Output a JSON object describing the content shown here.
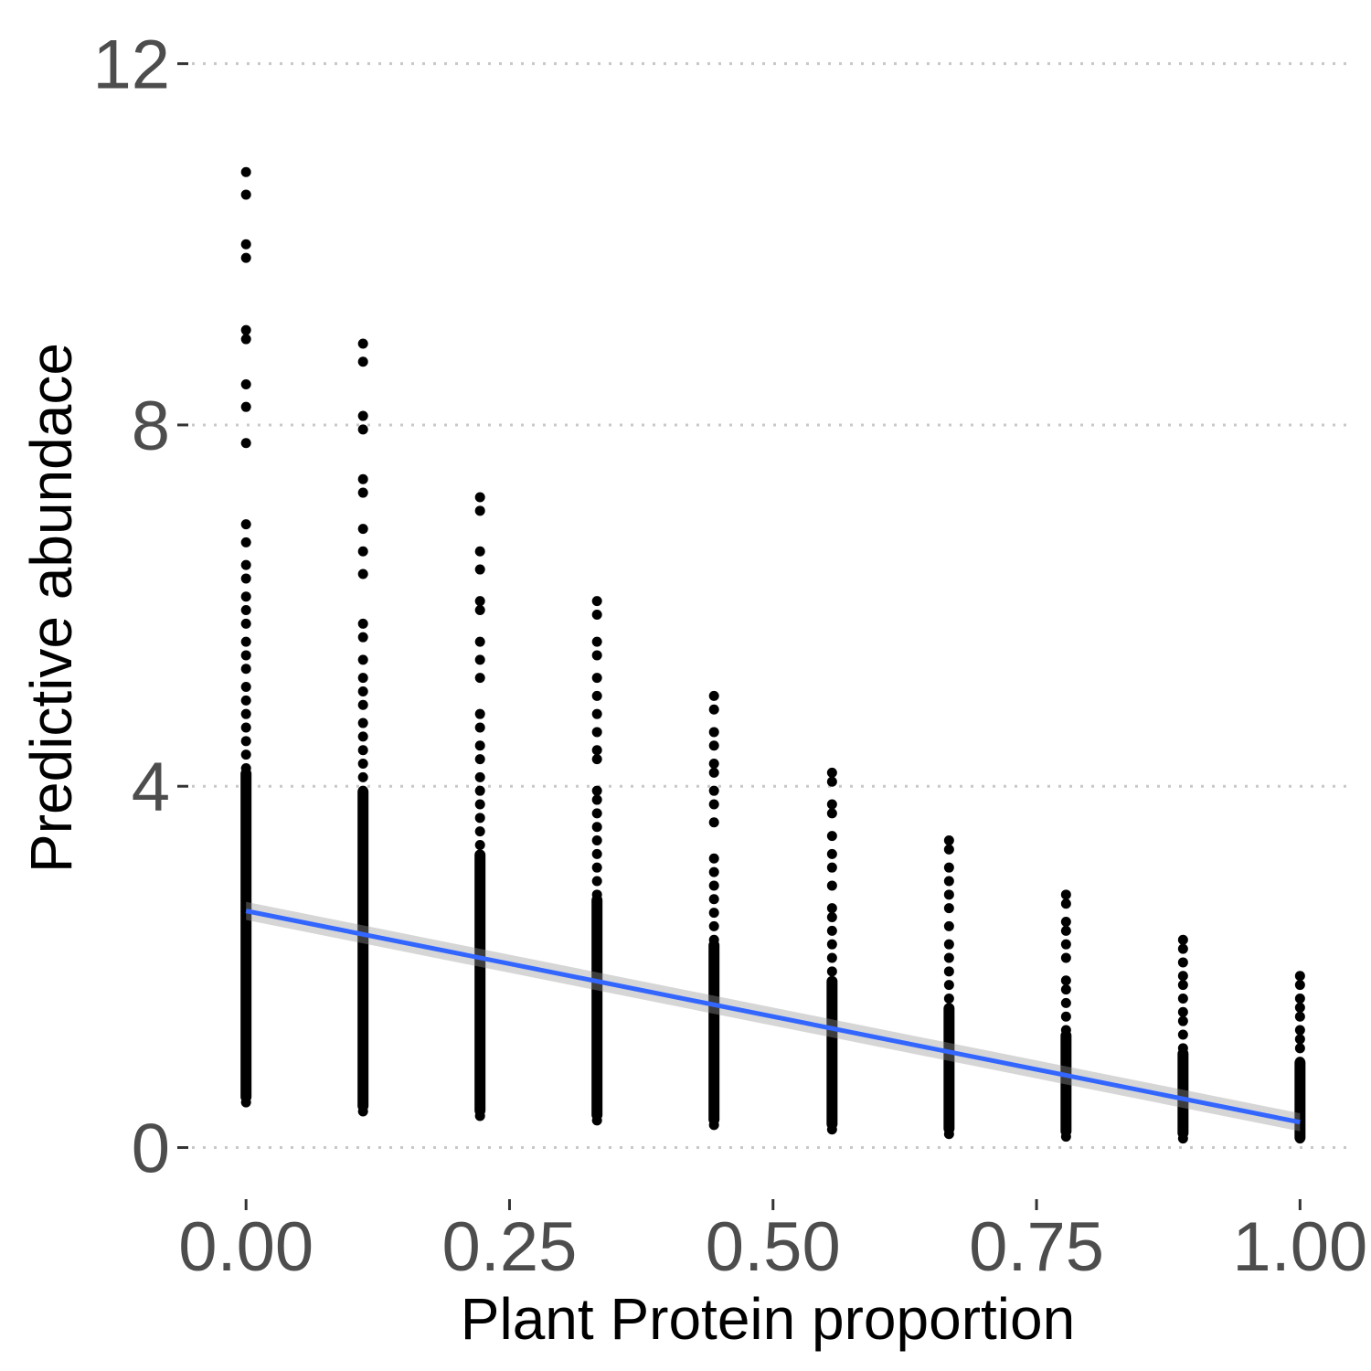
{
  "chart_data": {
    "type": "scatter",
    "title": "",
    "xlabel": "Plant Protein proportion",
    "ylabel": "Predictive abundace",
    "xlim": [
      -0.06,
      1.05
    ],
    "ylim": [
      -0.45,
      12.3
    ],
    "x_ticks": [
      0.0,
      0.25,
      0.5,
      0.75,
      1.0
    ],
    "x_tick_labels": [
      "0.00",
      "0.25",
      "0.50",
      "0.75",
      "1.00"
    ],
    "y_ticks": [
      0,
      4,
      8,
      12
    ],
    "y_tick_labels": [
      "0",
      "4",
      "8",
      "12"
    ],
    "grid": "horizontal dotted major lines",
    "legend": "none",
    "point_color": "#000000",
    "fit_line_color": "#3366FF",
    "confidence_band_color": "#999999",
    "groups": [
      {
        "x": 0.0,
        "points": [
          10.8,
          10.55,
          10.0,
          9.85,
          9.05,
          8.95,
          8.45,
          8.2,
          7.8,
          6.9,
          6.7,
          6.45,
          6.3,
          6.1,
          5.95,
          5.8,
          5.6,
          5.45,
          5.3,
          5.1,
          4.95,
          4.8,
          4.65,
          4.5,
          4.35,
          4.2,
          4.05,
          3.9,
          3.75,
          3.6,
          3.45,
          3.3,
          3.15,
          3.0,
          2.85,
          2.7,
          2.55,
          2.4,
          2.25,
          2.1,
          1.95,
          1.8,
          1.65,
          1.5,
          1.35,
          1.2,
          1.05,
          0.9,
          0.75,
          0.6,
          0.5
        ],
        "dense_range": [
          0.5,
          4.2
        ]
      },
      {
        "x": 0.111,
        "points": [
          8.9,
          8.7,
          8.1,
          7.95,
          7.4,
          7.25,
          6.85,
          6.6,
          6.35,
          5.8,
          5.65,
          5.4,
          5.2,
          5.05,
          4.9,
          4.7,
          4.55,
          4.4,
          4.25,
          4.1,
          3.95,
          3.8,
          3.65,
          3.5,
          3.35,
          3.2,
          3.05,
          2.9,
          2.75,
          2.6,
          2.45,
          2.3,
          2.15,
          2.0,
          1.85,
          1.7,
          1.55,
          1.4,
          1.25,
          1.1,
          0.95,
          0.8,
          0.65,
          0.5,
          0.4
        ],
        "dense_range": [
          0.4,
          4.0
        ]
      },
      {
        "x": 0.222,
        "points": [
          7.2,
          7.05,
          6.6,
          6.4,
          6.05,
          5.95,
          5.6,
          5.4,
          5.2,
          4.8,
          4.65,
          4.45,
          4.3,
          4.1,
          3.95,
          3.8,
          3.65,
          3.5,
          3.35,
          3.2,
          3.05,
          2.9,
          2.75,
          2.6,
          2.45,
          2.3,
          2.15,
          2.0,
          1.85,
          1.7,
          1.55,
          1.4,
          1.25,
          1.1,
          0.95,
          0.8,
          0.65,
          0.5,
          0.35
        ],
        "dense_range": [
          0.35,
          3.3
        ]
      },
      {
        "x": 0.333,
        "points": [
          6.05,
          5.9,
          5.6,
          5.45,
          5.2,
          5.0,
          4.8,
          4.6,
          4.4,
          4.3,
          3.95,
          3.85,
          3.7,
          3.55,
          3.4,
          3.25,
          3.1,
          2.95,
          2.8,
          2.65,
          2.5,
          2.35,
          2.2,
          2.05,
          1.9,
          1.75,
          1.6,
          1.45,
          1.3,
          1.15,
          1.0,
          0.85,
          0.7,
          0.55,
          0.4,
          0.3
        ],
        "dense_range": [
          0.3,
          2.8
        ]
      },
      {
        "x": 0.444,
        "points": [
          5.0,
          4.85,
          4.6,
          4.45,
          4.25,
          4.15,
          3.95,
          3.8,
          3.6,
          3.2,
          3.05,
          2.9,
          2.75,
          2.6,
          2.45,
          2.3,
          2.15,
          2.0,
          1.85,
          1.7,
          1.55,
          1.4,
          1.25,
          1.1,
          0.95,
          0.8,
          0.65,
          0.5,
          0.35,
          0.25
        ],
        "dense_range": [
          0.25,
          2.3
        ]
      },
      {
        "x": 0.556,
        "points": [
          4.15,
          4.05,
          3.8,
          3.7,
          3.45,
          3.25,
          3.1,
          2.9,
          2.65,
          2.55,
          2.4,
          2.25,
          2.1,
          1.95,
          1.8,
          1.65,
          1.5,
          1.35,
          1.2,
          1.05,
          0.9,
          0.75,
          0.6,
          0.45,
          0.3,
          0.2
        ],
        "dense_range": [
          0.2,
          1.9
        ]
      },
      {
        "x": 0.667,
        "points": [
          3.4,
          3.3,
          3.1,
          2.95,
          2.8,
          2.65,
          2.45,
          2.25,
          2.1,
          1.95,
          1.8,
          1.65,
          1.5,
          1.35,
          1.2,
          1.05,
          0.9,
          0.75,
          0.6,
          0.45,
          0.3,
          0.15
        ],
        "dense_range": [
          0.15,
          1.6
        ]
      },
      {
        "x": 0.778,
        "points": [
          2.8,
          2.7,
          2.5,
          2.4,
          2.25,
          2.1,
          1.85,
          1.75,
          1.6,
          1.45,
          1.3,
          1.15,
          1.0,
          0.85,
          0.7,
          0.55,
          0.4,
          0.25,
          0.12
        ],
        "dense_range": [
          0.12,
          1.3
        ]
      },
      {
        "x": 0.889,
        "points": [
          2.3,
          2.2,
          2.05,
          1.9,
          1.8,
          1.65,
          1.5,
          1.4,
          1.25,
          1.1,
          0.95,
          0.8,
          0.65,
          0.5,
          0.35,
          0.2,
          0.1
        ],
        "dense_range": [
          0.1,
          1.1
        ]
      },
      {
        "x": 1.0,
        "points": [
          1.9,
          1.8,
          1.65,
          1.55,
          1.45,
          1.3,
          1.2,
          1.1,
          0.95,
          0.85,
          0.7,
          0.55,
          0.4,
          0.25,
          0.1
        ],
        "dense_range": [
          0.05,
          1.0
        ]
      }
    ],
    "fit_line": {
      "x": [
        0.0,
        1.0
      ],
      "y": [
        2.62,
        0.28
      ]
    },
    "confidence_band": {
      "x": [
        0.0,
        1.0
      ],
      "lower": [
        2.52,
        0.18
      ],
      "upper": [
        2.72,
        0.38
      ]
    }
  }
}
